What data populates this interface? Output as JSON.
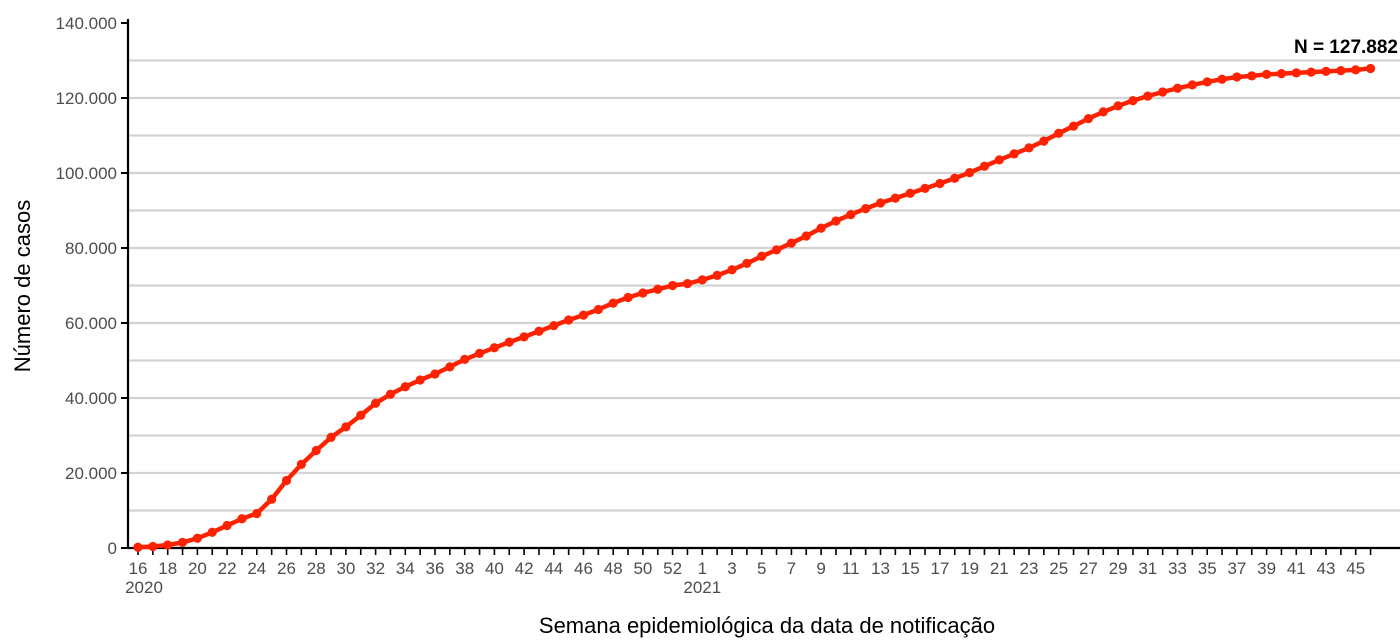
{
  "chart_data": {
    "type": "line",
    "xlabel": "Semana epidemiológica da data de notificação",
    "ylabel": "Número de casos",
    "annotation": "N = 127.882",
    "ylim": [
      0,
      140000
    ],
    "yticks": [
      0,
      20000,
      40000,
      60000,
      80000,
      100000,
      120000,
      140000
    ],
    "ytick_labels": [
      "0",
      "20.000",
      "40.000",
      "60.000",
      "80.000",
      "100.000",
      "120.000",
      "140.000"
    ],
    "year_labels": [
      {
        "year": "2020",
        "at_week": "16"
      },
      {
        "year": "2021",
        "at_week": "1"
      }
    ],
    "grid": "horizontal",
    "color": "#ff2200",
    "x": [
      "16",
      "17",
      "18",
      "19",
      "20",
      "21",
      "22",
      "23",
      "24",
      "25",
      "26",
      "27",
      "28",
      "29",
      "30",
      "31",
      "32",
      "33",
      "34",
      "35",
      "36",
      "37",
      "38",
      "39",
      "40",
      "41",
      "42",
      "43",
      "44",
      "45",
      "46",
      "47",
      "48",
      "49",
      "50",
      "51",
      "52",
      "53",
      "1",
      "2",
      "3",
      "4",
      "5",
      "6",
      "7",
      "8",
      "9",
      "10",
      "11",
      "12",
      "13",
      "14",
      "15",
      "16",
      "17",
      "18",
      "19",
      "20",
      "21",
      "22",
      "23",
      "24",
      "25",
      "26",
      "27",
      "28",
      "29",
      "30",
      "31",
      "32",
      "33",
      "34",
      "35",
      "36",
      "37",
      "38",
      "39",
      "40",
      "41",
      "42",
      "43",
      "44",
      "45",
      "46"
    ],
    "x_tick_labels": [
      "16",
      "18",
      "20",
      "22",
      "24",
      "26",
      "28",
      "30",
      "32",
      "34",
      "36",
      "38",
      "40",
      "42",
      "44",
      "46",
      "48",
      "50",
      "52",
      "1",
      "3",
      "5",
      "7",
      "9",
      "11",
      "13",
      "15",
      "17",
      "19",
      "21",
      "23",
      "25",
      "27",
      "29",
      "31",
      "33",
      "35",
      "37",
      "39",
      "41",
      "43",
      "45"
    ],
    "series": [
      {
        "values": [
          200,
          400,
          800,
          1500,
          2600,
          4200,
          6000,
          7800,
          9200,
          13000,
          18000,
          22300,
          26000,
          29500,
          32300,
          35400,
          38600,
          41000,
          43000,
          44800,
          46400,
          48300,
          50300,
          51900,
          53400,
          54900,
          56300,
          57800,
          59300,
          60800,
          62100,
          63600,
          65300,
          66800,
          68000,
          69000,
          70000,
          70500,
          71500,
          72700,
          74200,
          75900,
          77800,
          79500,
          81300,
          83200,
          85300,
          87200,
          88900,
          90500,
          92000,
          93300,
          94600,
          95900,
          97200,
          98600,
          100100,
          101800,
          103500,
          105100,
          106700,
          108500,
          110600,
          112500,
          114500,
          116300,
          117900,
          119300,
          120500,
          121600,
          122600,
          123500,
          124300,
          125000,
          125600,
          125900,
          126300,
          126500,
          126700,
          126900,
          127100,
          127300,
          127500,
          127882
        ]
      }
    ]
  }
}
